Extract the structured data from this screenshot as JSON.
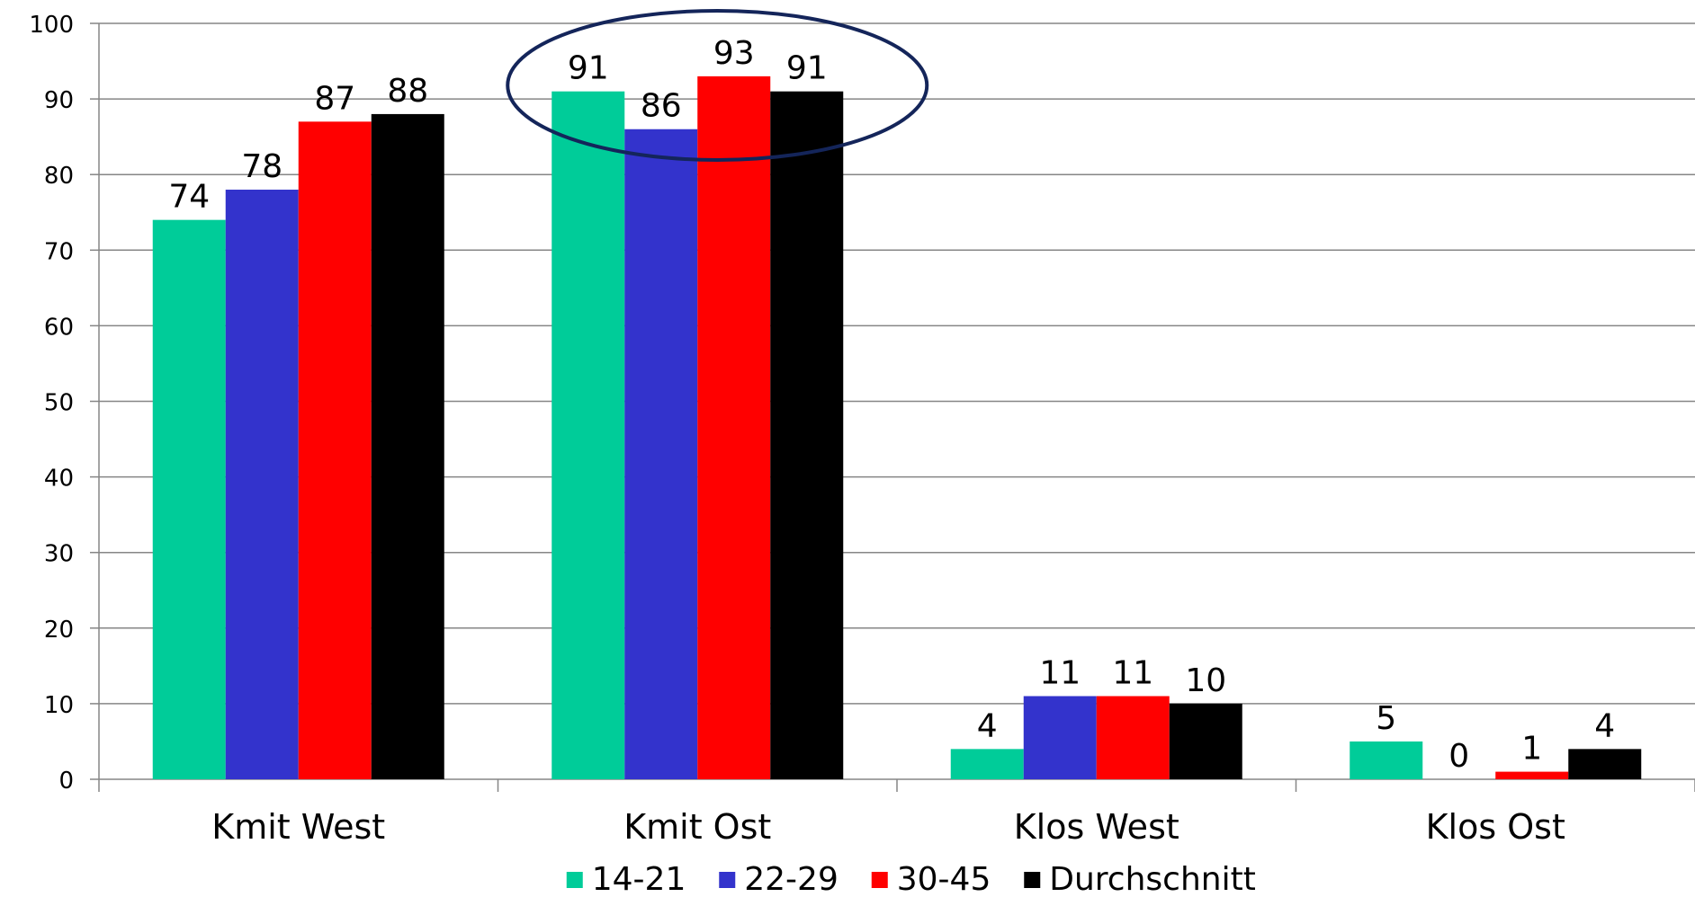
{
  "chart_data": {
    "type": "bar",
    "categories": [
      "Kmit West",
      "Kmit Ost",
      "Klos West",
      "Klos Ost"
    ],
    "series": [
      {
        "name": "14-21",
        "color": "#00CC99",
        "values": [
          74,
          91,
          4,
          5
        ]
      },
      {
        "name": "22-29",
        "color": "#3333CC",
        "values": [
          78,
          86,
          11,
          0
        ]
      },
      {
        "name": "30-45",
        "color": "#FF0000",
        "values": [
          87,
          93,
          11,
          1
        ]
      },
      {
        "name": "Durchschnitt",
        "color": "#000000",
        "values": [
          88,
          91,
          10,
          4
        ]
      }
    ],
    "ylim": [
      0,
      100
    ],
    "yticks": [
      0,
      10,
      20,
      30,
      40,
      50,
      60,
      70,
      80,
      90,
      100
    ],
    "grid": true,
    "legend": "bottom",
    "annotation": {
      "type": "ellipse",
      "target_category": "Kmit Ost",
      "color": "#14255A"
    }
  }
}
